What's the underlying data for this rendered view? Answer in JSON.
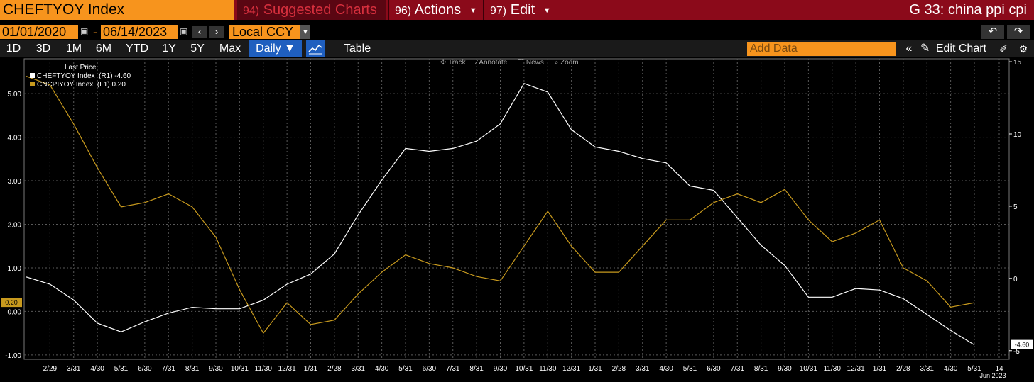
{
  "header": {
    "ticker": "CHEFTYOY Index",
    "suggested_num": "94)",
    "suggested_label": "Suggested Charts",
    "actions_num": "96)",
    "actions_label": "Actions",
    "edit_num": "97)",
    "edit_label": "Edit",
    "screen_title": "G 33: china ppi cpi"
  },
  "controls": {
    "start_date": "01/01/2020",
    "end_date": "06/14/2023",
    "currency": "Local CCY",
    "ranges": [
      "1D",
      "3D",
      "1M",
      "6M",
      "YTD",
      "1Y",
      "5Y",
      "Max"
    ],
    "frequency": "Daily",
    "table_label": "Table",
    "add_data_placeholder": "Add Data",
    "edit_chart_label": "Edit Chart"
  },
  "toolbar": {
    "track": "Track",
    "annotate": "Annotate",
    "news": "News",
    "zoom": "Zoom"
  },
  "colors": {
    "header_red": "#8b0a1a",
    "field_orange": "#f7941d",
    "series_white": "#ffffff",
    "series_gold": "#c89a1e",
    "grid": "#6a6a6a"
  },
  "chart_data": {
    "type": "line",
    "legend_title": "Last Price",
    "x": [
      "1/31",
      "2/29",
      "3/31",
      "4/30",
      "5/31",
      "6/30",
      "7/31",
      "8/31",
      "9/30",
      "10/31",
      "11/30",
      "12/31",
      "1/31",
      "2/28",
      "3/31",
      "4/30",
      "5/31",
      "6/30",
      "7/31",
      "8/31",
      "9/30",
      "10/31",
      "11/30",
      "12/31",
      "1/31",
      "2/28",
      "3/31",
      "4/30",
      "5/31",
      "6/30",
      "7/31",
      "8/31",
      "9/30",
      "10/31",
      "11/30",
      "12/31",
      "1/31",
      "2/28",
      "3/31",
      "4/30",
      "5/31"
    ],
    "x_tick_labels": [
      "2/29",
      "3/31",
      "4/30",
      "5/31",
      "6/30",
      "7/31",
      "8/31",
      "9/30",
      "10/31",
      "11/30",
      "12/31",
      "1/31",
      "2/28",
      "3/31",
      "4/30",
      "5/31",
      "6/30",
      "7/31",
      "8/31",
      "9/30",
      "10/31",
      "11/30",
      "12/31",
      "1/31",
      "2/28",
      "3/31",
      "4/30",
      "5/31",
      "6/30",
      "7/31",
      "8/31",
      "9/30",
      "10/31",
      "11/30",
      "12/31",
      "1/31",
      "2/28",
      "3/31",
      "4/30",
      "5/31",
      "14"
    ],
    "x_sub_label": "Jun 2023",
    "series": [
      {
        "name": "CHEFTYOY Index",
        "axis_label": "(R1)",
        "last": "-4.60",
        "axis": "right",
        "color": "#ffffff",
        "values": [
          0.1,
          -0.4,
          -1.5,
          -3.1,
          -3.7,
          -3.0,
          -2.4,
          -2.0,
          -2.1,
          -2.1,
          -1.5,
          -0.4,
          0.3,
          1.7,
          4.4,
          6.8,
          9.0,
          8.8,
          9.0,
          9.5,
          10.7,
          13.5,
          12.9,
          10.3,
          9.1,
          8.8,
          8.3,
          8.0,
          6.4,
          6.1,
          4.2,
          2.3,
          0.9,
          -1.3,
          -1.3,
          -0.7,
          -0.8,
          -1.4,
          -2.5,
          -3.6,
          -4.6
        ]
      },
      {
        "name": "CNCPIYOY Index",
        "axis_label": "(L1)",
        "last": "0.20",
        "axis": "left",
        "color": "#c89a1e",
        "values": [
          5.4,
          5.2,
          4.3,
          3.3,
          2.4,
          2.5,
          2.7,
          2.4,
          1.7,
          0.5,
          -0.5,
          0.2,
          -0.3,
          -0.2,
          0.4,
          0.9,
          1.3,
          1.1,
          1.0,
          0.8,
          0.7,
          1.5,
          2.3,
          1.5,
          0.9,
          0.9,
          1.5,
          2.1,
          2.1,
          2.5,
          2.7,
          2.5,
          2.8,
          2.1,
          1.6,
          1.8,
          2.1,
          1.0,
          0.7,
          0.1,
          0.2
        ]
      }
    ],
    "left_axis": {
      "ylim": [
        -1.1,
        5.8
      ],
      "ticks": [
        -1.0,
        0.0,
        1.0,
        2.0,
        3.0,
        4.0,
        5.0
      ],
      "tick_labels": [
        "-1.00",
        "0.00",
        "1.00",
        "2.00",
        "3.00",
        "4.00",
        "5.00"
      ]
    },
    "right_axis": {
      "ylim": [
        -5.6,
        15.2
      ],
      "ticks": [
        -5,
        0,
        5,
        10,
        15
      ],
      "tick_labels": [
        "-5",
        "0",
        "5",
        "10",
        "15"
      ]
    },
    "grid": true,
    "legend_position": "top-left"
  }
}
